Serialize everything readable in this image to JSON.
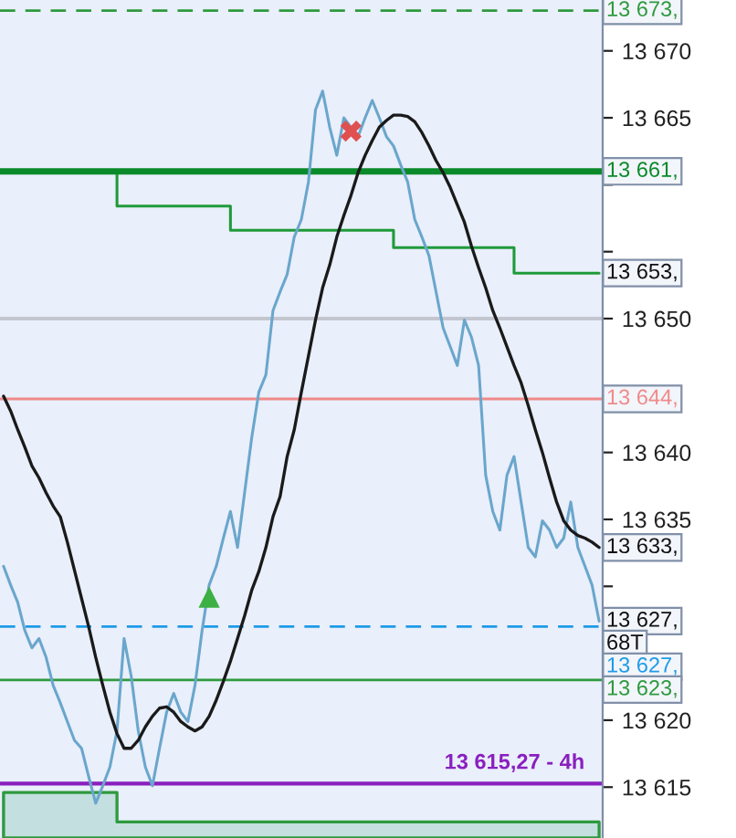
{
  "chart_data": {
    "type": "line",
    "categories": [
      null,
      null,
      null,
      null,
      null,
      null,
      null,
      null,
      null,
      null,
      null,
      null,
      null,
      null,
      null,
      null,
      null,
      null,
      null,
      null,
      null,
      null,
      null,
      null,
      null,
      null,
      null,
      null,
      null,
      null,
      null,
      null,
      null,
      null,
      null,
      null,
      null,
      null,
      null,
      null,
      null,
      null,
      null,
      null,
      null,
      null,
      null,
      null,
      null,
      null,
      null,
      null,
      null,
      null,
      null,
      null,
      null,
      null,
      null,
      null,
      null,
      null,
      null,
      null,
      null,
      null,
      null,
      null,
      null,
      null,
      null,
      null,
      null,
      null,
      null,
      null,
      null,
      null,
      null,
      null,
      null,
      null,
      null,
      null,
      null
    ],
    "series": [
      {
        "type": "area",
        "color": "#2e9a3e",
        "values": [
          13614.6,
          13614.6,
          13614.6,
          13614.6,
          13614.6,
          13614.6,
          13614.6,
          13614.6,
          13614.6,
          13614.6,
          13614.6,
          13614.6,
          13614.6,
          13614.6,
          13614.6,
          13614.6,
          13612.4,
          13612.4,
          13612.4,
          13612.4,
          13612.4,
          13612.4,
          13612.4,
          13612.4,
          13612.4,
          13612.4,
          13612.4,
          13612.4,
          13612.4,
          13612.4,
          13612.4,
          13612.4,
          13612.4,
          13612.4,
          13612.4,
          13612.4,
          13612.4,
          13612.4,
          13612.4,
          13612.4,
          13612.4,
          13612.4,
          13612.4,
          13612.4,
          13612.4,
          13612.4,
          13612.4,
          13612.4,
          13612.4,
          13612.4,
          13612.4,
          13612.4,
          13612.4,
          13612.4,
          13612.4,
          13612.4,
          13612.4,
          13612.4,
          13612.4,
          13612.4,
          13612.4,
          13612.4,
          13612.4,
          13612.4,
          13612.4,
          13612.4,
          13612.4,
          13612.4,
          13612.4,
          13612.4,
          13612.4,
          13612.4,
          13612.4,
          13612.4,
          13612.4,
          13612.4,
          13612.4,
          13612.4,
          13612.4,
          13612.4,
          13612.4,
          13612.4,
          13612.4,
          13612.4,
          13612.4
        ]
      },
      {
        "type": "step",
        "color": "#1f9a3a",
        "value_labels": [
          null,
          null,
          null,
          null,
          null,
          null,
          null,
          null,
          null,
          null,
          null,
          null,
          null,
          null,
          null,
          null,
          null,
          null,
          null,
          null,
          null,
          null,
          null,
          null,
          null,
          null,
          null,
          null,
          null,
          null,
          null,
          null,
          null,
          null,
          null,
          null,
          null,
          null,
          null,
          null,
          null,
          null,
          null,
          null,
          null,
          null,
          null,
          null,
          null,
          null,
          null,
          null,
          null,
          null,
          null,
          null,
          null,
          null,
          null,
          null,
          null,
          null,
          null,
          null,
          null,
          null,
          null,
          null,
          null,
          null,
          null,
          null,
          null,
          null,
          null,
          null,
          null,
          null,
          null,
          null,
          null,
          null,
          null,
          null,
          "13 653,"
        ],
        "values": [
          13661.0,
          13661.0,
          13661.0,
          13661.0,
          13661.0,
          13661.0,
          13661.0,
          13661.0,
          13661.0,
          13661.0,
          13661.0,
          13661.0,
          13661.0,
          13661.0,
          13661.0,
          13661.0,
          13658.4,
          13658.4,
          13658.4,
          13658.4,
          13658.4,
          13658.4,
          13658.4,
          13658.4,
          13658.4,
          13658.4,
          13658.4,
          13658.4,
          13658.4,
          13658.4,
          13658.4,
          13658.4,
          13656.6,
          13656.6,
          13656.6,
          13656.6,
          13656.6,
          13656.6,
          13656.6,
          13656.6,
          13656.6,
          13656.6,
          13656.6,
          13656.6,
          13656.6,
          13656.6,
          13656.6,
          13656.6,
          13656.6,
          13656.6,
          13656.6,
          13656.6,
          13656.6,
          13656.6,
          13656.6,
          13655.3,
          13655.3,
          13655.3,
          13655.3,
          13655.3,
          13655.3,
          13655.3,
          13655.3,
          13655.3,
          13655.3,
          13655.3,
          13655.3,
          13655.3,
          13655.3,
          13655.3,
          13655.3,
          13655.3,
          13653.4,
          13653.4,
          13653.4,
          13653.4,
          13653.4,
          13653.4,
          13653.4,
          13653.4,
          13653.4,
          13653.4,
          13653.4,
          13653.4,
          13653.4
        ]
      },
      {
        "color": "#6aa6cc",
        "value_labels": [
          null,
          null,
          null,
          null,
          null,
          null,
          null,
          null,
          null,
          null,
          null,
          null,
          null,
          null,
          null,
          null,
          null,
          null,
          null,
          null,
          null,
          null,
          null,
          null,
          null,
          null,
          null,
          null,
          null,
          null,
          null,
          null,
          null,
          null,
          null,
          null,
          null,
          null,
          null,
          null,
          null,
          null,
          null,
          null,
          null,
          null,
          null,
          null,
          null,
          null,
          null,
          null,
          null,
          null,
          null,
          null,
          null,
          null,
          null,
          null,
          null,
          null,
          null,
          null,
          null,
          null,
          null,
          null,
          null,
          null,
          null,
          null,
          null,
          null,
          null,
          null,
          null,
          null,
          null,
          null,
          null,
          null,
          null,
          null,
          "13 627,"
        ],
        "values": [
          13631.5,
          13630.1,
          13628.8,
          13626.7,
          13625.4,
          13626.1,
          13624.7,
          13622.6,
          13621.3,
          13619.9,
          13618.5,
          13617.9,
          13615.8,
          13613.8,
          13615.1,
          13616.5,
          13619.2,
          13626.1,
          13623.3,
          13619.2,
          13616.5,
          13615.1,
          13617.9,
          13620.6,
          13622.0,
          13620.6,
          13619.9,
          13622.6,
          13626.7,
          13630.1,
          13631.5,
          13633.6,
          13635.6,
          13632.9,
          13637.0,
          13641.1,
          13644.5,
          13645.8,
          13650.6,
          13652.0,
          13653.3,
          13656.1,
          13657.4,
          13660.2,
          13665.6,
          13667.0,
          13664.3,
          13662.2,
          13665.0,
          13664.3,
          13663.6,
          13665.0,
          13666.3,
          13665.0,
          13663.6,
          13662.9,
          13661.5,
          13660.2,
          13657.4,
          13656.1,
          13654.7,
          13652.0,
          13649.3,
          13647.9,
          13646.5,
          13649.9,
          13648.6,
          13646.5,
          13638.3,
          13635.6,
          13634.2,
          13638.3,
          13639.7,
          13636.3,
          13632.9,
          13632.2,
          13634.9,
          13634.2,
          13632.9,
          13633.6,
          13636.3,
          13632.9,
          13631.5,
          13630.1,
          13627.4
        ]
      },
      {
        "type": "line",
        "color": "#1a1a1a",
        "value_labels": [
          null,
          null,
          null,
          null,
          null,
          null,
          null,
          null,
          null,
          null,
          null,
          null,
          null,
          null,
          null,
          null,
          null,
          null,
          null,
          null,
          null,
          null,
          null,
          null,
          null,
          null,
          null,
          null,
          null,
          null,
          null,
          null,
          null,
          null,
          null,
          null,
          null,
          null,
          null,
          null,
          null,
          null,
          null,
          null,
          null,
          null,
          null,
          null,
          null,
          null,
          null,
          null,
          null,
          null,
          null,
          null,
          null,
          null,
          null,
          null,
          null,
          null,
          null,
          null,
          null,
          null,
          null,
          null,
          null,
          null,
          null,
          null,
          null,
          null,
          null,
          null,
          null,
          null,
          null,
          null,
          null,
          null,
          null,
          null,
          "13 633,"
        ],
        "values": [
          13644.2,
          13643.1,
          13641.7,
          13640.4,
          13639.0,
          13638.1,
          13637.0,
          13636.0,
          13635.2,
          13633.3,
          13631.2,
          13629.1,
          13627.0,
          13624.7,
          13622.6,
          13620.6,
          13619.0,
          13617.9,
          13617.9,
          13618.5,
          13619.5,
          13620.3,
          13620.9,
          13621.0,
          13620.6,
          13619.9,
          13619.5,
          13619.2,
          13619.5,
          13620.3,
          13621.5,
          13622.9,
          13624.4,
          13626.1,
          13627.8,
          13629.7,
          13631.1,
          13632.9,
          13635.2,
          13636.7,
          13639.7,
          13641.7,
          13644.5,
          13647.2,
          13649.9,
          13652.3,
          13654.0,
          13656.1,
          13657.7,
          13659.2,
          13660.9,
          13662.2,
          13663.3,
          13664.3,
          13664.8,
          13665.2,
          13665.2,
          13665.1,
          13664.7,
          13663.9,
          13662.9,
          13661.8,
          13660.9,
          13659.8,
          13658.5,
          13657.2,
          13655.4,
          13653.8,
          13652.3,
          13650.6,
          13649.3,
          13647.9,
          13646.5,
          13645.2,
          13643.5,
          13641.7,
          13640.0,
          13638.1,
          13636.3,
          13634.9,
          13634.2,
          13633.8,
          13633.6,
          13633.3,
          13632.9
        ]
      },
      {
        "type": "scatter",
        "color": "#3cb043",
        "marker": "triangle",
        "values": [
          null,
          null,
          null,
          null,
          null,
          null,
          null,
          null,
          null,
          null,
          null,
          null,
          null,
          null,
          null,
          null,
          null,
          null,
          null,
          null,
          null,
          null,
          null,
          null,
          null,
          null,
          null,
          null,
          null,
          13629.2,
          null,
          null,
          null,
          null,
          null,
          null,
          null,
          null,
          null,
          null,
          null,
          null,
          null,
          null,
          null,
          null,
          null,
          null,
          null,
          null,
          null,
          null,
          null,
          null,
          null,
          null,
          null,
          null,
          null,
          null,
          null,
          null,
          null,
          null,
          null,
          null,
          null,
          null,
          null,
          null,
          null,
          null,
          null,
          null,
          null,
          null,
          null,
          null,
          null,
          null,
          null,
          null,
          null,
          null,
          null
        ]
      },
      {
        "type": "scatter",
        "color": "#e05050",
        "marker": "cross",
        "values": [
          null,
          null,
          null,
          null,
          null,
          null,
          null,
          null,
          null,
          null,
          null,
          null,
          null,
          null,
          null,
          null,
          null,
          null,
          null,
          null,
          null,
          null,
          null,
          null,
          null,
          null,
          null,
          null,
          null,
          null,
          null,
          null,
          null,
          null,
          null,
          null,
          null,
          null,
          null,
          null,
          null,
          null,
          null,
          null,
          null,
          null,
          null,
          null,
          null,
          13664.0,
          null,
          null,
          null,
          null,
          null,
          null,
          null,
          null,
          null,
          null,
          null,
          null,
          null,
          null,
          null,
          null,
          null,
          null,
          null,
          null,
          null,
          null,
          null,
          null,
          null,
          null,
          null,
          null,
          null,
          null,
          null,
          null,
          null,
          null,
          null
        ]
      }
    ],
    "ylim": [
      13611.2,
      13673.8
    ],
    "yticks": [
      {
        "value": 13615,
        "label": "13 615"
      },
      {
        "value": 13620,
        "label": "13 620"
      },
      {
        "value": 13625,
        "label": null
      },
      {
        "value": 13630,
        "label": null
      },
      {
        "value": 13635,
        "label": "13 635"
      },
      {
        "value": 13640,
        "label": "13 640"
      },
      {
        "value": 13650,
        "label": "13 650"
      },
      {
        "value": 13655,
        "label": null
      },
      {
        "value": 13660,
        "label": null
      },
      {
        "value": 13665,
        "label": "13 665"
      },
      {
        "value": 13670,
        "label": "13 670"
      }
    ],
    "tick_labels": "y",
    "grid": false,
    "legend": false,
    "ref_lines": [
      {
        "axis": "y",
        "value": 13673,
        "label": "13 673,",
        "color": "#2e9a3e",
        "line_style": "dashed"
      },
      {
        "axis": "y",
        "value": 13661,
        "label": "13 661,",
        "color": "#0a8a2a"
      },
      {
        "axis": "y",
        "value": 13650,
        "color": "#c3c6cf"
      },
      {
        "axis": "y",
        "value": 13644,
        "label": "13 644,",
        "color": "#f08a8a"
      },
      {
        "axis": "y",
        "value": 13627,
        "label": "13 627,",
        "color": "#1e9be8",
        "line_style": "dashed"
      },
      {
        "axis": "y",
        "value": 13623,
        "label": "13 623,",
        "color": "#2e9a3e"
      },
      {
        "axis": "y",
        "value": 13615.27,
        "color": "#8a1fbf"
      }
    ],
    "annotations": [
      "68T",
      {
        "text": "13 615,27 - 4h",
        "y": 13615.27
      }
    ]
  }
}
